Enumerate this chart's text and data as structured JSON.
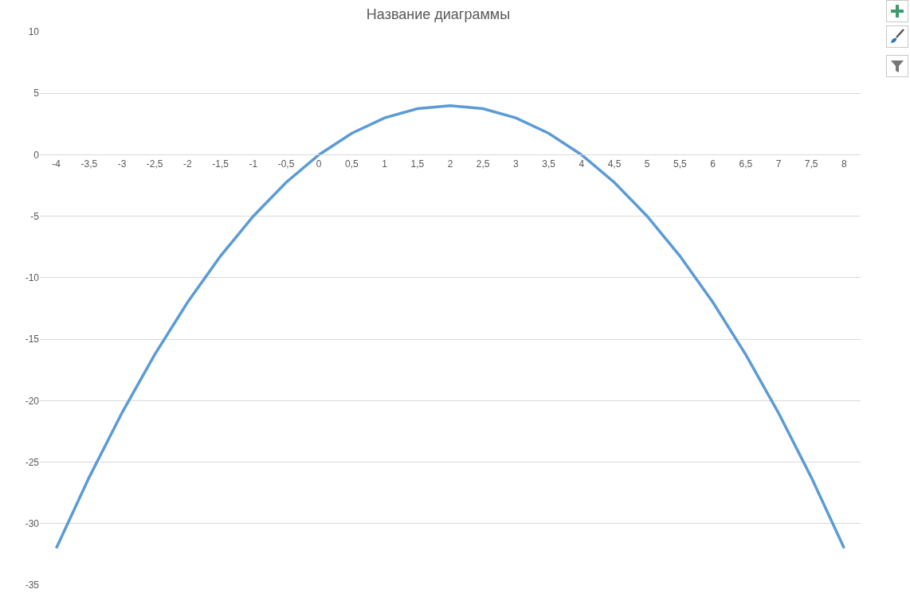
{
  "chart_data": {
    "type": "line",
    "title": "Название диаграммы",
    "categories": [
      "-4",
      "-3,5",
      "-3",
      "-2,5",
      "-2",
      "-1,5",
      "-1",
      "-0,5",
      "0",
      "0,5",
      "1",
      "1,5",
      "2",
      "2,5",
      "3",
      "3,5",
      "4",
      "4,5",
      "5",
      "5,5",
      "6",
      "6,5",
      "7",
      "7,5",
      "8"
    ],
    "series": [
      {
        "color": "#5b9bd5",
        "values": [
          -32,
          -26.25,
          -21,
          -16.25,
          -12,
          -8.25,
          -5,
          -2.25,
          0,
          1.75,
          3,
          3.75,
          4,
          3.75,
          3,
          1.75,
          0,
          -2.25,
          -5,
          -8.25,
          -12,
          -16.25,
          -21,
          -26.25,
          -32
        ]
      }
    ],
    "ylim": [
      -35,
      10
    ],
    "yticks": [
      10,
      5,
      0,
      -5,
      -10,
      -15,
      -20,
      -25,
      -30,
      -35
    ],
    "grid": "y",
    "marker": "none",
    "line_style": "solid"
  }
}
